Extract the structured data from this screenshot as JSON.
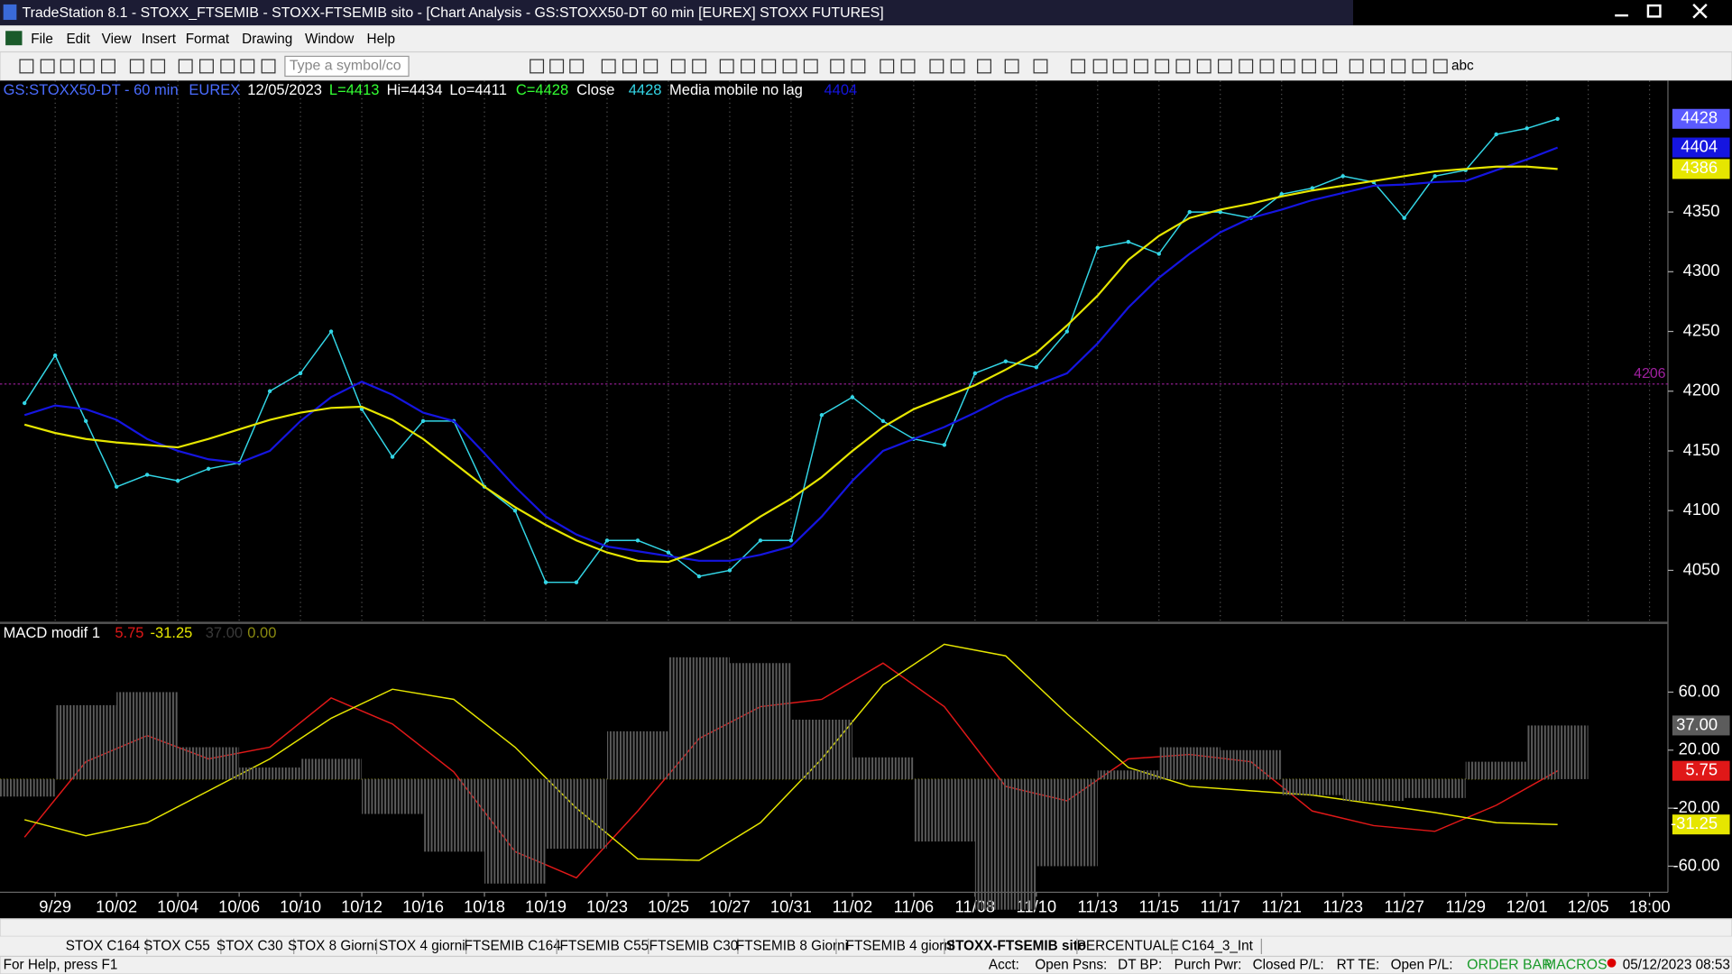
{
  "window": {
    "title": "TradeStation 8.1 - STOXX_FTSEMIB - STOXX-FTSEMIB sito - [Chart Analysis - GS:STOXX50-DT  60 min  [EUREX] STOXX FUTURES]"
  },
  "menu": [
    "File",
    "Edit",
    "View",
    "Insert",
    "Format",
    "Drawing",
    "Window",
    "Help"
  ],
  "toolbar": {
    "symbol_input": "Type a symbol/co",
    "text_tool": "abc"
  },
  "chart_data": [
    {
      "type": "line",
      "header": [
        "GS:STOXX50-DT - 60 min",
        "EUREX",
        "12/05/2023",
        "L=4413",
        "Hi=4434",
        "Lo=4411",
        "C=4428"
      ],
      "x": [
        -0.5,
        0,
        0.5,
        1,
        1.5,
        2,
        2.5,
        3,
        3.5,
        4,
        4.5,
        5,
        5.5,
        6,
        6.5,
        7,
        7.5,
        8,
        8.5,
        9,
        9.5,
        10,
        10.5,
        11,
        11.5,
        12,
        12.5,
        13,
        13.5,
        14,
        14.5,
        15,
        15.5,
        16,
        16.5,
        17,
        17.5,
        18,
        18.5,
        19,
        19.5,
        20,
        20.5,
        21,
        21.5,
        22,
        22.5,
        23,
        23.5,
        24,
        24.5
      ],
      "series": [
        {
          "name": "Close",
          "color": "#33d6e6",
          "label_box_color": "#5a5aff",
          "markers": true,
          "values": [
            4190,
            4230,
            4175,
            4120,
            4130,
            4125,
            4135,
            4140,
            4200,
            4215,
            4250,
            4185,
            4145,
            4175,
            4175,
            4120,
            4100,
            4040,
            4040,
            4075,
            4075,
            4065,
            4045,
            4050,
            4075,
            4075,
            4180,
            4195,
            4175,
            4160,
            4155,
            4215,
            4225,
            4220,
            4250,
            4320,
            4325,
            4315,
            4350,
            4350,
            4345,
            4365,
            4370,
            4380,
            4375,
            4345,
            4380,
            4385,
            4415,
            4420,
            4428
          ]
        },
        {
          "name": "Media mobile no lag",
          "color": "#1515e0",
          "values": [
            4180,
            4188,
            4185,
            4176,
            4160,
            4150,
            4143,
            4140,
            4150,
            4175,
            4195,
            4208,
            4197,
            4182,
            4175,
            4148,
            4120,
            4095,
            4080,
            4070,
            4066,
            4062,
            4058,
            4058,
            4063,
            4070,
            4095,
            4125,
            4150,
            4160,
            4170,
            4182,
            4195,
            4205,
            4215,
            4240,
            4270,
            4295,
            4315,
            4333,
            4345,
            4352,
            4360,
            4366,
            4372,
            4373,
            4375,
            4376,
            4385,
            4394,
            4404
          ]
        },
        {
          "color": "#e6e600",
          "values": [
            4172,
            4165,
            4160,
            4157,
            4155,
            4153,
            4160,
            4168,
            4176,
            4182,
            4186,
            4187,
            4176,
            4160,
            4140,
            4120,
            4103,
            4088,
            4075,
            4065,
            4058,
            4057,
            4066,
            4078,
            4095,
            4110,
            4128,
            4150,
            4170,
            4185,
            4195,
            4205,
            4218,
            4232,
            4255,
            4280,
            4310,
            4330,
            4345,
            4352,
            4357,
            4363,
            4368,
            4372,
            4376,
            4380,
            4384,
            4386,
            4388,
            4388,
            4386
          ]
        }
      ],
      "reference_line": 4206,
      "reference_color": "#a020a0",
      "xlim": [
        -0.9,
        26.3
      ],
      "ylim": [
        4007,
        4460
      ],
      "yticks": [
        4050,
        4100,
        4150,
        4200,
        4250,
        4300,
        4350
      ]
    },
    {
      "type": "line",
      "title": "MACD modif 1",
      "x": [
        -0.5,
        0.5,
        1.5,
        2.5,
        3.5,
        4.5,
        5.5,
        6.5,
        7.5,
        8.5,
        9.5,
        10.5,
        11.5,
        12.5,
        13.5,
        14.5,
        15.5,
        16.5,
        17.5,
        18.5,
        19.5,
        20.5,
        21.5,
        22.5,
        23.5,
        24.5
      ],
      "series": [
        {
          "color": "#e01818",
          "values": [
            -40,
            12,
            30,
            14,
            22,
            56,
            38,
            5,
            -50,
            -68,
            -22,
            28,
            50,
            55,
            80,
            50,
            -5,
            -15,
            14,
            17,
            12,
            -22,
            -32,
            -36,
            -18,
            5.75
          ]
        },
        {
          "color": "#e6e600",
          "values": [
            -28,
            -39,
            -30,
            -8,
            14,
            42,
            62,
            55,
            22,
            -20,
            -55,
            -56,
            -30,
            14,
            65,
            93,
            85,
            45,
            8,
            -5,
            -8,
            -11,
            -17,
            -23,
            -30,
            -31.25
          ]
        },
        {
          "type": "bar",
          "color": "#5c5c5c",
          "values": [
            -12,
            51,
            60,
            22,
            8,
            14,
            -24,
            -50,
            -72,
            -48,
            33,
            84,
            80,
            41,
            15,
            -43,
            -90,
            -60,
            6,
            22,
            20,
            -11,
            -15,
            -13,
            12,
            37
          ],
          "value_labels": [
            null,
            null,
            null,
            null,
            null,
            null,
            null,
            null,
            null,
            null,
            null,
            null,
            null,
            null,
            null,
            null,
            null,
            null,
            null,
            null,
            null,
            null,
            null,
            null,
            null,
            "37.00"
          ]
        }
      ],
      "zero_line": {
        "value": 0,
        "label": "0.00"
      },
      "zero_color": "#8a8a10",
      "xlim": [
        -0.9,
        26.3
      ],
      "ylim": [
        -78,
        107
      ],
      "yticks": [
        {
          "value": 60,
          "label": "60.00"
        },
        {
          "value": 20,
          "label": "20.00"
        },
        {
          "value": -20,
          "label": "-20.00"
        },
        {
          "value": -60,
          "label": "-60.00"
        }
      ],
      "xticks": [
        {
          "value": 0,
          "label": "9/29"
        },
        {
          "value": 1,
          "label": "10/02"
        },
        {
          "value": 2,
          "label": "10/04"
        },
        {
          "value": 3,
          "label": "10/06"
        },
        {
          "value": 4,
          "label": "10/10"
        },
        {
          "value": 5,
          "label": "10/12"
        },
        {
          "value": 6,
          "label": "10/16"
        },
        {
          "value": 7,
          "label": "10/18"
        },
        {
          "value": 8,
          "label": "10/19"
        },
        {
          "value": 9,
          "label": "10/23"
        },
        {
          "value": 10,
          "label": "10/25"
        },
        {
          "value": 11,
          "label": "10/27"
        },
        {
          "value": 12,
          "label": "10/31"
        },
        {
          "value": 13,
          "label": "11/02"
        },
        {
          "value": 14,
          "label": "11/06"
        },
        {
          "value": 15,
          "label": "11/08"
        },
        {
          "value": 16,
          "label": "11/10"
        },
        {
          "value": 17,
          "label": "11/13"
        },
        {
          "value": 18,
          "label": "11/15"
        },
        {
          "value": 19,
          "label": "11/17"
        },
        {
          "value": 20,
          "label": "11/21"
        },
        {
          "value": 21,
          "label": "11/23"
        },
        {
          "value": 22,
          "label": "11/27"
        },
        {
          "value": 23,
          "label": "11/29"
        },
        {
          "value": 24,
          "label": "12/01"
        },
        {
          "value": 25,
          "label": "12/05"
        },
        {
          "value": 26,
          "label": "18:00"
        }
      ]
    }
  ],
  "tabs": [
    "STOX C164",
    "STOX C55",
    "STOX  C30",
    "STOX  8 Giorni",
    "STOX 4 giorni",
    "FTSEMIB C164",
    "FTSEMIB C55",
    "FTSEMIB C30",
    "FTSEMIB  8 Giorni",
    "FTSEMIB  4 giorni",
    "STOXX-FTSEMIB sito",
    "PERCENTUALE",
    "C164_3_Int"
  ],
  "status_bar": {
    "help": "For Help, press F1",
    "fields": [
      "Acct:",
      "Open Psns:",
      "DT BP:",
      "Purch Pwr:",
      "Closed P/L:",
      "RT TE:",
      "Open P/L:"
    ],
    "order_bar": "ORDER BAR",
    "macros": "MACROS",
    "datetime": "05/12/2023 08:53"
  }
}
